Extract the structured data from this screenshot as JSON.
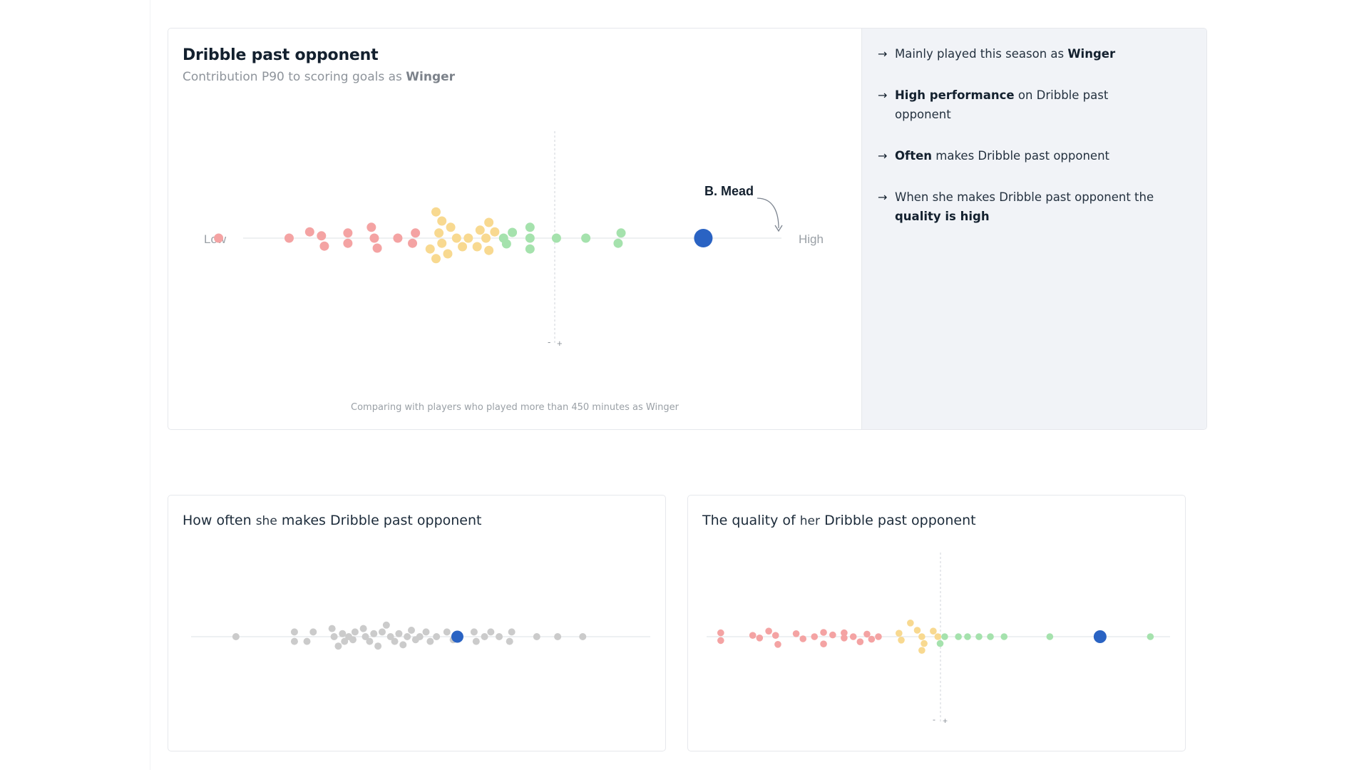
{
  "main": {
    "title": "Dribble past opponent",
    "subtitle_prefix": "Contribution P90 to scoring goals as",
    "subtitle_position": "Winger",
    "footnote": "Comparing with players who played more than 450 minutes as Winger",
    "low_label": "Low",
    "high_label": "High",
    "minus_label": "-",
    "plus_label": "+",
    "highlight_label": "B. Mead"
  },
  "insights": [
    {
      "arrow": "→",
      "pre": "Mainly played this season as",
      "bold": "Winger",
      "post": ""
    },
    {
      "arrow": "→",
      "pre": "",
      "bold": "High performance",
      "post": "on Dribble past opponent"
    },
    {
      "arrow": "→",
      "pre": "",
      "bold": "Often",
      "post": "makes Dribble past opponent"
    },
    {
      "arrow": "→",
      "pre": "When she makes Dribble past opponent the",
      "bold": "quality is high",
      "post": ""
    }
  ],
  "often": {
    "title_a": "How often",
    "pronoun": "she",
    "title_b": "makes Dribble past opponent"
  },
  "quality": {
    "title_a": "The quality of",
    "pronoun": "her",
    "title_b": "Dribble past opponent",
    "minus_label": "-",
    "plus_label": "+"
  },
  "colors": {
    "negative": "#f4a3a3",
    "neutral": "#f8d990",
    "positive": "#a5e2ad",
    "highlight": "#2a63c3",
    "grey": "#cbcbcb",
    "axis": "#e4e6e9"
  },
  "chart_data": [
    {
      "type": "scatter",
      "chart": "beeswarm",
      "title": "Dribble past opponent",
      "subtitle": "Contribution P90 to scoring goals as Winger",
      "xlabel_left": "Low",
      "xlabel_right": "High",
      "xlim": [
        -1,
        1
      ],
      "zero_marker": true,
      "highlight": {
        "name": "B. Mead",
        "x": 0.7
      },
      "points": [
        [
          -0.95,
          0
        ],
        [
          -0.71,
          0
        ],
        [
          -0.64,
          0.22
        ],
        [
          -0.6,
          0.08
        ],
        [
          -0.59,
          -0.28
        ],
        [
          -0.51,
          0.18
        ],
        [
          -0.51,
          -0.18
        ],
        [
          -0.43,
          0.38
        ],
        [
          -0.42,
          0.0
        ],
        [
          -0.41,
          -0.35
        ],
        [
          -0.34,
          0
        ],
        [
          -0.29,
          -0.18
        ],
        [
          -0.28,
          0.18
        ],
        [
          -0.23,
          -0.38
        ],
        [
          -0.21,
          -0.72
        ],
        [
          -0.21,
          0.92
        ],
        [
          -0.2,
          0.18
        ],
        [
          -0.19,
          0.6
        ],
        [
          -0.19,
          -0.18
        ],
        [
          -0.17,
          -0.55
        ],
        [
          -0.16,
          0.38
        ],
        [
          -0.14,
          0
        ],
        [
          -0.12,
          -0.3
        ],
        [
          -0.1,
          0
        ],
        [
          -0.07,
          -0.3
        ],
        [
          -0.06,
          0.28
        ],
        [
          -0.04,
          0
        ],
        [
          -0.03,
          0.55
        ],
        [
          -0.03,
          -0.43
        ],
        [
          -0.01,
          0.22
        ],
        [
          0.02,
          0.0
        ],
        [
          0.03,
          -0.2
        ],
        [
          0.05,
          0.2
        ],
        [
          0.11,
          0.38
        ],
        [
          0.11,
          0.0
        ],
        [
          0.11,
          -0.38
        ],
        [
          0.2,
          0
        ],
        [
          0.3,
          0
        ],
        [
          0.42,
          0.18
        ],
        [
          0.41,
          -0.18
        ]
      ],
      "point_categories": [
        "negative x<-0.25",
        "neutral -0.25<=x<0",
        "positive x>=0"
      ]
    },
    {
      "type": "scatter",
      "chart": "beeswarm",
      "title": "How often she makes Dribble past opponent",
      "xlim": [
        -1,
        1
      ],
      "highlight": {
        "x": 0.22
      },
      "points": [
        [
          -0.84,
          0
        ],
        [
          -0.56,
          0.55
        ],
        [
          -0.56,
          -0.55
        ],
        [
          -0.5,
          -0.55
        ],
        [
          -0.47,
          0.55
        ],
        [
          -0.38,
          0.95
        ],
        [
          -0.37,
          0.0
        ],
        [
          -0.35,
          -1.1
        ],
        [
          -0.33,
          0.35
        ],
        [
          -0.32,
          -0.55
        ],
        [
          -0.3,
          0.0
        ],
        [
          -0.28,
          -0.35
        ],
        [
          -0.27,
          0.55
        ],
        [
          -0.23,
          0.95
        ],
        [
          -0.22,
          0.0
        ],
        [
          -0.2,
          -0.55
        ],
        [
          -0.18,
          0.35
        ],
        [
          -0.16,
          -1.1
        ],
        [
          -0.14,
          0.55
        ],
        [
          -0.12,
          1.35
        ],
        [
          -0.1,
          0.0
        ],
        [
          -0.08,
          -0.55
        ],
        [
          -0.06,
          0.35
        ],
        [
          -0.04,
          -0.95
        ],
        [
          -0.02,
          0.0
        ],
        [
          0.0,
          0.75
        ],
        [
          0.02,
          -0.35
        ],
        [
          0.04,
          0.0
        ],
        [
          0.07,
          0.55
        ],
        [
          0.09,
          -0.55
        ],
        [
          0.12,
          0
        ],
        [
          0.17,
          0.55
        ],
        [
          0.2,
          -0.35
        ],
        [
          0.3,
          0.55
        ],
        [
          0.31,
          -0.55
        ],
        [
          0.35,
          0.0
        ],
        [
          0.38,
          0.55
        ],
        [
          0.42,
          0.0
        ],
        [
          0.47,
          -0.55
        ],
        [
          0.48,
          0.55
        ],
        [
          0.6,
          0
        ],
        [
          0.7,
          0
        ],
        [
          0.82,
          0
        ]
      ]
    },
    {
      "type": "scatter",
      "chart": "beeswarm",
      "title": "The quality of her Dribble past opponent",
      "xlim": [
        -1,
        1
      ],
      "zero_marker": true,
      "highlight": {
        "x": 0.7
      },
      "points": [
        [
          -0.96,
          0.45
        ],
        [
          -0.96,
          -0.45
        ],
        [
          -0.82,
          0.15
        ],
        [
          -0.79,
          -0.15
        ],
        [
          -0.75,
          0.65
        ],
        [
          -0.72,
          0.15
        ],
        [
          -0.71,
          -0.9
        ],
        [
          -0.63,
          0.35
        ],
        [
          -0.6,
          -0.25
        ],
        [
          -0.55,
          0.0
        ],
        [
          -0.51,
          0.5
        ],
        [
          -0.51,
          -0.85
        ],
        [
          -0.47,
          0.2
        ],
        [
          -0.42,
          0.45
        ],
        [
          -0.42,
          -0.15
        ],
        [
          -0.38,
          0.0
        ],
        [
          -0.35,
          -0.6
        ],
        [
          -0.32,
          0.3
        ],
        [
          -0.3,
          -0.3
        ],
        [
          -0.27,
          0.0
        ],
        [
          -0.18,
          0.4
        ],
        [
          -0.17,
          -0.4
        ],
        [
          -0.13,
          1.6
        ],
        [
          -0.1,
          0.75
        ],
        [
          -0.08,
          0.0
        ],
        [
          -0.08,
          -1.6
        ],
        [
          -0.07,
          -0.8
        ],
        [
          -0.03,
          0.65
        ],
        [
          -0.01,
          0.0
        ],
        [
          0.0,
          -0.8
        ],
        [
          0.02,
          0.0
        ],
        [
          0.08,
          0
        ],
        [
          0.12,
          0
        ],
        [
          0.17,
          0
        ],
        [
          0.22,
          0
        ],
        [
          0.28,
          0
        ],
        [
          0.48,
          0
        ],
        [
          0.92,
          0
        ]
      ]
    }
  ]
}
